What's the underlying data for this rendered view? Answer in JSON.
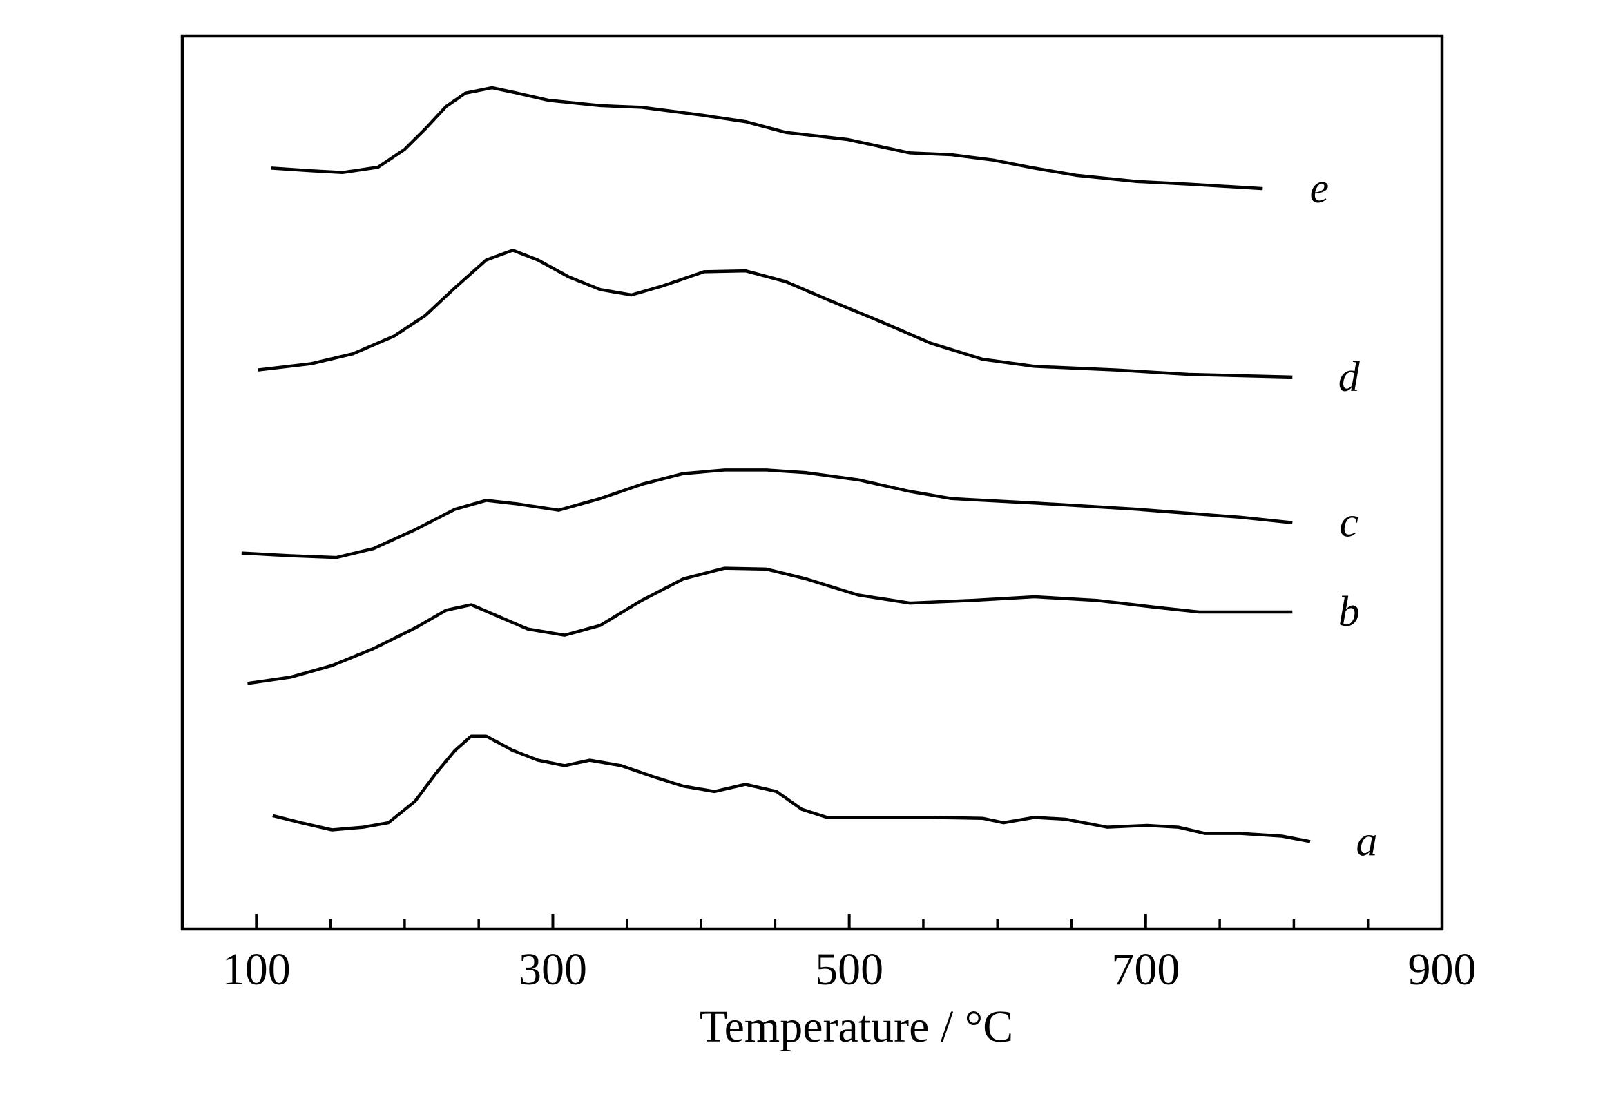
{
  "chart_data": {
    "type": "line",
    "xlabel": "Temperature / °C",
    "xlim": [
      50,
      900
    ],
    "xticks": [
      100,
      300,
      500,
      700,
      900
    ],
    "xticks_minor": [
      150,
      200,
      250,
      350,
      400,
      450,
      550,
      600,
      650,
      750,
      800,
      850
    ],
    "ylim": [
      0,
      100
    ],
    "series": [
      {
        "name": "a",
        "color": "#000000",
        "x": [
          111,
          130,
          151,
          172,
          189,
          207,
          221,
          234,
          245,
          255,
          273,
          290,
          308,
          325,
          346,
          367,
          388,
          409,
          430,
          451,
          468,
          485,
          520,
          555,
          590,
          604,
          625,
          646,
          674,
          701,
          722,
          740,
          764,
          792,
          811
        ],
        "values": [
          12.7,
          11.9,
          11.1,
          11.4,
          11.9,
          14.3,
          17.4,
          20.0,
          21.6,
          21.6,
          20.0,
          18.9,
          18.3,
          18.9,
          18.3,
          17.1,
          16.0,
          15.4,
          16.2,
          15.4,
          13.4,
          12.5,
          12.5,
          12.5,
          12.4,
          11.9,
          12.5,
          12.3,
          11.4,
          11.6,
          11.4,
          10.7,
          10.7,
          10.4,
          9.8
        ]
      },
      {
        "name": "b",
        "color": "#000000",
        "x": [
          94,
          123,
          151,
          179,
          207,
          228,
          245,
          262,
          283,
          308,
          332,
          360,
          388,
          416,
          444,
          471,
          506,
          541,
          583,
          625,
          667,
          708,
          736,
          799
        ],
        "values": [
          27.5,
          28.2,
          29.5,
          31.4,
          33.7,
          35.7,
          36.3,
          35.1,
          33.6,
          32.9,
          34.0,
          36.8,
          39.2,
          40.4,
          40.3,
          39.2,
          37.4,
          36.5,
          36.8,
          37.2,
          36.8,
          36.0,
          35.5,
          35.5
        ]
      },
      {
        "name": "c",
        "color": "#000000",
        "x": [
          90,
          123,
          154,
          179,
          207,
          234,
          255,
          276,
          304,
          332,
          360,
          388,
          416,
          444,
          471,
          506,
          541,
          569,
          625,
          694,
          764,
          799
        ],
        "values": [
          42.1,
          41.8,
          41.6,
          42.6,
          44.7,
          47.0,
          48.0,
          47.6,
          46.9,
          48.2,
          49.8,
          51.0,
          51.4,
          51.4,
          51.1,
          50.3,
          49.0,
          48.2,
          47.7,
          47.0,
          46.1,
          45.5
        ]
      },
      {
        "name": "d",
        "color": "#000000",
        "x": [
          101,
          137,
          165,
          193,
          214,
          234,
          255,
          273,
          290,
          311,
          332,
          353,
          374,
          402,
          430,
          457,
          485,
          520,
          555,
          590,
          625,
          680,
          729,
          799
        ],
        "values": [
          62.6,
          63.3,
          64.4,
          66.4,
          68.7,
          71.8,
          74.9,
          76.0,
          74.9,
          73.0,
          71.6,
          71.0,
          72.0,
          73.6,
          73.7,
          72.5,
          70.5,
          68.1,
          65.6,
          63.8,
          63.0,
          62.6,
          62.1,
          61.8
        ]
      },
      {
        "name": "e",
        "color": "#000000",
        "x": [
          110,
          137,
          158,
          182,
          200,
          214,
          228,
          241,
          259,
          276,
          297,
          332,
          360,
          402,
          430,
          457,
          499,
          541,
          569,
          597,
          625,
          653,
          694,
          729,
          779
        ],
        "values": [
          85.2,
          84.9,
          84.7,
          85.3,
          87.3,
          89.6,
          92.1,
          93.6,
          94.2,
          93.6,
          92.8,
          92.2,
          92.0,
          91.1,
          90.4,
          89.2,
          88.4,
          86.9,
          86.7,
          86.1,
          85.2,
          84.4,
          83.7,
          83.4,
          82.9
        ]
      }
    ]
  }
}
